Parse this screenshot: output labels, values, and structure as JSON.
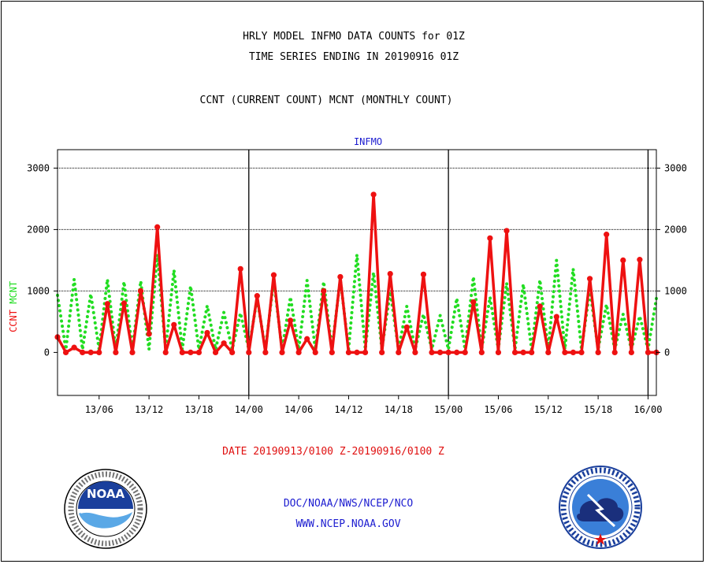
{
  "header": {
    "title1": "HRLY MODEL INFMO DATA COUNTS for 01Z",
    "title2": "TIME SERIES ENDING IN 20190916 01Z",
    "title3": "CCNT (CURRENT COUNT) MCNT (MONTHLY COUNT)"
  },
  "footer": {
    "date_range": "DATE 20190913/0100 Z-20190916/0100 Z",
    "org": "DOC/NOAA/NWS/NCEP/NCO",
    "url": "WWW.NCEP.NOAA.GOV"
  },
  "logos": {
    "left": "NOAA",
    "right": "NATIONAL WEATHER SERVICE"
  },
  "colors": {
    "ccnt": "#ee1111",
    "mcnt": "#22dd22",
    "title_blue": "#1c1cd0",
    "grid": "#000000"
  },
  "chart_data": {
    "type": "line",
    "title": "INFMO",
    "ylabel_left": [
      "CCNT",
      "MCNT"
    ],
    "ylim": [
      -700,
      3300
    ],
    "y_ticks": [
      0,
      1000,
      2000,
      3000
    ],
    "y_tick_labels": [
      "0",
      "1000",
      "2000",
      "3000"
    ],
    "x_range_hours": [
      1,
      73
    ],
    "x_ticks": [
      6,
      12,
      18,
      24,
      30,
      36,
      42,
      48,
      54,
      60,
      66,
      72
    ],
    "x_tick_labels": [
      "13/06",
      "13/12",
      "13/18",
      "14/00",
      "14/06",
      "14/12",
      "14/18",
      "15/00",
      "15/06",
      "15/12",
      "15/18",
      "16/00"
    ],
    "day_boundaries": [
      24,
      48,
      72
    ],
    "x_unit": "hours after 20190913/0000 Z",
    "series": [
      {
        "name": "CCNT",
        "color": "#ee1111",
        "style": "solid",
        "x": [
          1,
          2,
          3,
          4,
          5,
          6,
          7,
          8,
          9,
          10,
          11,
          12,
          13,
          14,
          15,
          16,
          17,
          18,
          19,
          20,
          21,
          22,
          23,
          24,
          25,
          26,
          27,
          28,
          29,
          30,
          31,
          32,
          33,
          34,
          35,
          36,
          37,
          38,
          39,
          40,
          41,
          42,
          43,
          44,
          45,
          46,
          47,
          48,
          49,
          50,
          51,
          52,
          53,
          54,
          55,
          56,
          57,
          58,
          59,
          60,
          61,
          62,
          63,
          64,
          65,
          66,
          67,
          68,
          69,
          70,
          71,
          72,
          73
        ],
        "values": [
          250,
          0,
          80,
          0,
          0,
          0,
          790,
          0,
          800,
          0,
          1000,
          300,
          2040,
          0,
          450,
          0,
          0,
          0,
          320,
          0,
          150,
          0,
          1360,
          0,
          920,
          0,
          1260,
          0,
          520,
          0,
          220,
          0,
          1000,
          0,
          1230,
          0,
          0,
          0,
          2570,
          0,
          1280,
          0,
          410,
          0,
          1270,
          0,
          0,
          0,
          0,
          0,
          820,
          0,
          1860,
          0,
          1980,
          0,
          0,
          0,
          750,
          0,
          580,
          0,
          0,
          0,
          1200,
          0,
          1920,
          0,
          1500,
          0,
          1510,
          0,
          0
        ]
      },
      {
        "name": "MCNT",
        "color": "#22dd22",
        "style": "dotted",
        "x": [
          1,
          2,
          3,
          4,
          5,
          6,
          7,
          8,
          9,
          10,
          11,
          12,
          13,
          14,
          15,
          16,
          17,
          18,
          19,
          20,
          21,
          22,
          23,
          24,
          25,
          26,
          27,
          28,
          29,
          30,
          31,
          32,
          33,
          34,
          35,
          36,
          37,
          38,
          39,
          40,
          41,
          42,
          43,
          44,
          45,
          46,
          47,
          48,
          49,
          50,
          51,
          52,
          53,
          54,
          55,
          56,
          57,
          58,
          59,
          60,
          61,
          62,
          63,
          64,
          65,
          66,
          67,
          68,
          69,
          70,
          71,
          72,
          73
        ],
        "values": [
          930,
          50,
          1190,
          50,
          950,
          50,
          1190,
          50,
          1150,
          50,
          1160,
          50,
          1590,
          50,
          1340,
          50,
          1080,
          50,
          760,
          50,
          650,
          50,
          640,
          50,
          880,
          50,
          1180,
          50,
          900,
          50,
          1170,
          50,
          1150,
          50,
          1200,
          50,
          1590,
          50,
          1300,
          50,
          990,
          50,
          750,
          50,
          620,
          50,
          600,
          50,
          880,
          50,
          1230,
          50,
          900,
          50,
          1130,
          50,
          1110,
          50,
          1180,
          50,
          1500,
          50,
          1360,
          50,
          1020,
          50,
          780,
          50,
          620,
          50,
          590,
          50,
          880
        ]
      }
    ]
  }
}
